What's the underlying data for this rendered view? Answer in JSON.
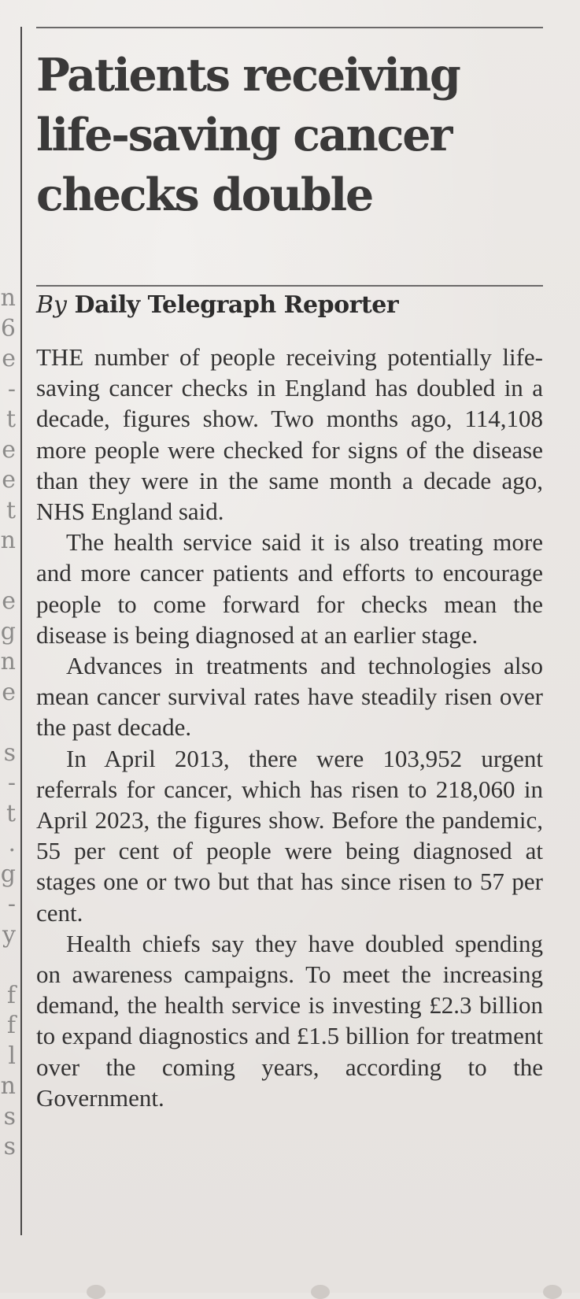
{
  "article": {
    "headline": "Patients receiving life-saving cancer checks double",
    "byline_prefix": "By",
    "byline_name": "Daily Telegraph Reporter",
    "paragraphs": [
      "THE number of people receiving potentially life-saving cancer checks in England has doubled in a decade, figures show. Two months ago, 114,108 more people were checked for signs of the disease than they were in the same month a decade ago, NHS England said.",
      "The health service said it is also treating more and more cancer patients and efforts to encourage people to come forward for checks mean the disease is being diagnosed at an earlier stage.",
      "Advances in treatments and technologies also mean cancer survival rates have steadily risen over the past decade.",
      "In April 2013, there were 103,952 urgent referrals for cancer, which has risen to 218,060 in April 2023, the figures show. Before the pandemic, 55 per cent of people were being diagnosed at stages one or two but that has since risen to 57 per cent.",
      "Health chiefs say they have doubled spending on awareness campaigns. To meet the increasing demand, the health service is investing £2.3 billion to expand diagnostics and £1.5 billion for treatment over the coming years, according to the Government."
    ]
  }
}
